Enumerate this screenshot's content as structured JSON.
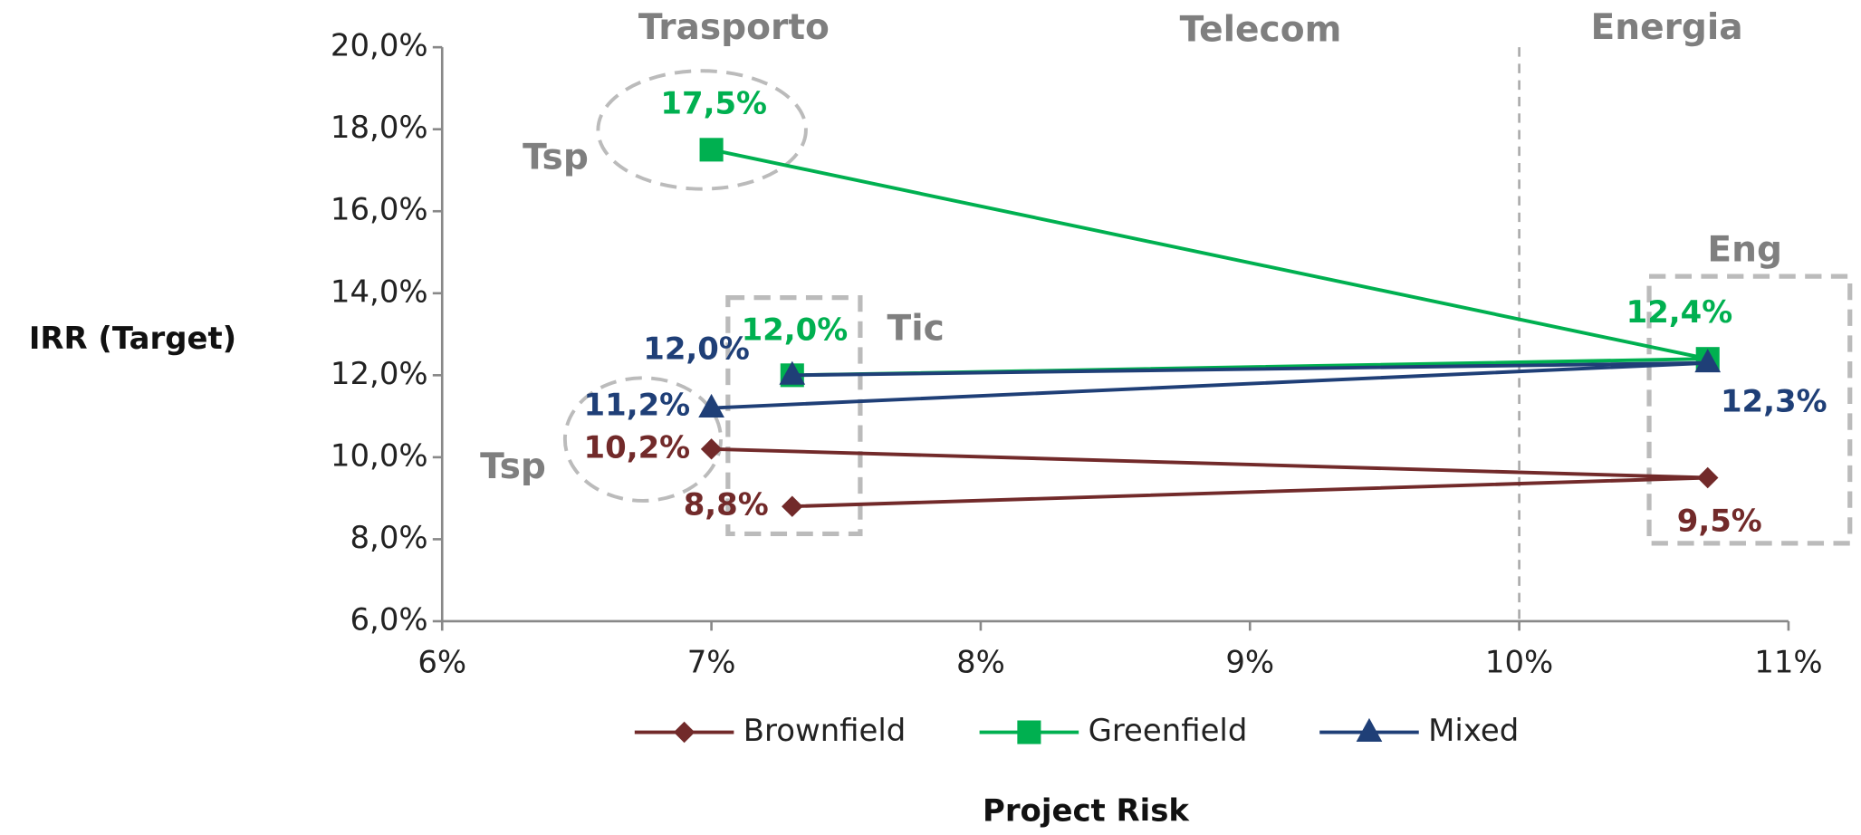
{
  "chart_data": {
    "type": "line",
    "x_label": "Project Risk",
    "y_label": "IRR (Target)",
    "xlim": [
      6,
      11
    ],
    "xticks": [
      {
        "value": 6,
        "label": "6%"
      },
      {
        "value": 7,
        "label": "7%"
      },
      {
        "value": 8,
        "label": "8%"
      },
      {
        "value": 9,
        "label": "9%"
      },
      {
        "value": 10,
        "label": "10%"
      },
      {
        "value": 11,
        "label": "11%"
      }
    ],
    "ylim": [
      6,
      20
    ],
    "yticks": [
      {
        "value": 6,
        "label": "6,0%"
      },
      {
        "value": 8,
        "label": "8,0%"
      },
      {
        "value": 10,
        "label": "10,0%"
      },
      {
        "value": 12,
        "label": "12,0%"
      },
      {
        "value": 14,
        "label": "14,0%"
      },
      {
        "value": 16,
        "label": "16,0%"
      },
      {
        "value": 18,
        "label": "18,0%"
      },
      {
        "value": 20,
        "label": "20,0%"
      }
    ],
    "vlines": [
      10
    ],
    "series": [
      {
        "name": "Brownfield",
        "color": "#722a2a",
        "marker": "diamond",
        "x": [
          7,
          10.7,
          7.3
        ],
        "values": [
          10.2,
          9.5,
          8.8
        ],
        "value_labels": [
          "10,2%",
          "9,5%",
          "8,8%"
        ]
      },
      {
        "name": "Greenfield",
        "color": "#00b050",
        "marker": "square",
        "x": [
          7,
          10.7,
          7.3
        ],
        "values": [
          17.5,
          12.4,
          12.0
        ],
        "value_labels": [
          "17,5%",
          "12,4%",
          "12,0%"
        ]
      },
      {
        "name": "Mixed",
        "color": "#1f3f77",
        "marker": "triangle",
        "x": [
          7,
          10.7,
          7.3
        ],
        "values": [
          11.2,
          12.3,
          12.0
        ],
        "value_labels": [
          "11,2%",
          "12,3%",
          "12,0%"
        ]
      }
    ],
    "annotations": [
      "Trasporto",
      "Telecom",
      "Energia",
      "Tsp",
      "Tsp",
      "Tic",
      "Eng"
    ],
    "legend": "bottom"
  }
}
